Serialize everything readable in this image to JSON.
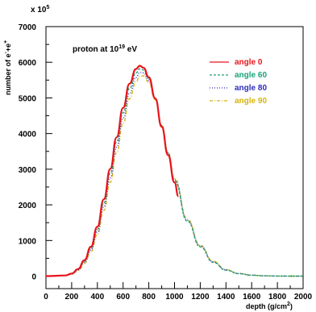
{
  "chart_data": {
    "type": "line",
    "annotation": {
      "text": "proton at 10",
      "sup": "19",
      "unit": " eV"
    },
    "xlabel": "depth (g/cm",
    "xlabel_sup": "2",
    "xlabel_end": ")",
    "ylabel": "number of e",
    "ylabel_sup": "-",
    "ylabel_mid": "+e",
    "ylabel_sup2": "+",
    "y_multiplier": "x 10",
    "y_multiplier_exp": "5",
    "xlim": [
      0,
      2000
    ],
    "ylim": [
      -350,
      7000
    ],
    "x_ticks": [
      0,
      200,
      400,
      600,
      800,
      1000,
      1200,
      1400,
      1600,
      1800,
      2000
    ],
    "y_ticks": [
      0,
      1000,
      2000,
      3000,
      4000,
      5000,
      6000,
      7000
    ],
    "series": [
      {
        "name": "angle 0",
        "color": "#e8141c",
        "dash": "",
        "width": 2.2,
        "peak": 5900,
        "shift": 0,
        "x": [
          0,
          150,
          200,
          250,
          300,
          350,
          400,
          450,
          500,
          550,
          600,
          650,
          700,
          730,
          760,
          800,
          850,
          900,
          950,
          1000,
          1030
        ]
      },
      {
        "name": "angle 60",
        "color": "#1aa37a",
        "dash": "3,2",
        "width": 1.4,
        "peak": 5830,
        "shift": 5,
        "x": [
          0,
          150,
          200,
          250,
          300,
          350,
          400,
          450,
          500,
          550,
          600,
          650,
          700,
          730,
          760,
          800,
          850,
          900,
          950,
          1000,
          1100,
          1200,
          1300,
          1400,
          1500,
          1600,
          1700,
          1800,
          1900,
          2000
        ]
      },
      {
        "name": "angle 80",
        "color": "#2d2db8",
        "dash": "1,2",
        "width": 1.4,
        "peak": 5740,
        "shift": 10,
        "x": [
          0,
          150,
          200,
          250,
          300,
          350,
          400,
          450,
          500,
          550,
          600,
          650,
          700,
          730,
          760,
          800,
          850,
          900,
          950,
          1000,
          1100,
          1200,
          1300,
          1400,
          1500,
          1600,
          1700,
          1800,
          1900,
          2000
        ]
      },
      {
        "name": "angle 90",
        "color": "#d8b40a",
        "dash": "4,2,1,2",
        "width": 1.4,
        "peak": 5650,
        "shift": 15,
        "x": [
          0,
          150,
          200,
          250,
          300,
          350,
          400,
          450,
          500,
          550,
          600,
          650,
          700,
          730,
          760,
          800,
          850,
          900,
          950,
          1000,
          1100,
          1200,
          1300,
          1400,
          1500,
          1600,
          1700,
          1800,
          1900,
          2000
        ]
      }
    ],
    "shape": {
      "x": [
        0,
        150,
        200,
        250,
        300,
        350,
        400,
        450,
        500,
        550,
        600,
        650,
        700,
        730,
        760,
        800,
        850,
        900,
        950,
        1000,
        1030,
        1100,
        1200,
        1300,
        1400,
        1500,
        1600,
        1700,
        1800,
        1900,
        2000
      ],
      "f": [
        0,
        0.003,
        0.012,
        0.034,
        0.076,
        0.14,
        0.235,
        0.365,
        0.51,
        0.66,
        0.8,
        0.915,
        0.985,
        1.0,
        0.99,
        0.945,
        0.845,
        0.71,
        0.575,
        0.445,
        0.38,
        0.255,
        0.135,
        0.063,
        0.027,
        0.011,
        0.004,
        0.0015,
        0.0005,
        0.0002,
        0.0001
      ]
    }
  }
}
